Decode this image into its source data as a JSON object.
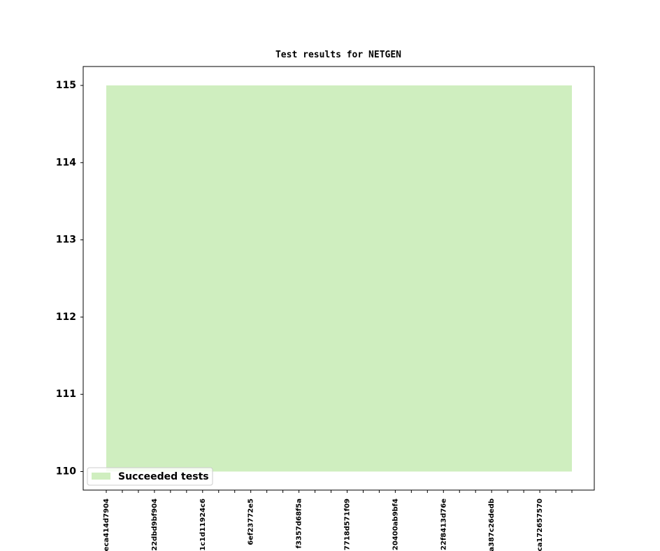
{
  "chart_data": {
    "type": "area",
    "title": "Test results for NETGEN",
    "categories": [
      "eca414d7904",
      null,
      null,
      "22dbd9bf904",
      null,
      null,
      "1c1d11924c6",
      null,
      null,
      "6ef23772e5",
      null,
      null,
      "f3357d68f5a",
      null,
      null,
      "7718d571f09",
      null,
      null,
      "20400ab9bf4",
      null,
      null,
      "22f8413d76e",
      null,
      null,
      "a387c26dedb",
      null,
      null,
      "ca172657570",
      null,
      null
    ],
    "series": [
      {
        "name": "Succeeded tests",
        "color": "#cfeebf",
        "values": [
          115,
          115,
          115,
          115,
          115,
          115,
          115,
          115,
          115,
          115,
          115,
          115,
          115,
          115,
          115,
          115,
          115,
          115,
          115,
          115,
          115,
          115,
          115,
          115,
          115,
          115,
          115,
          115,
          115,
          115
        ]
      }
    ],
    "baseline": 110,
    "ylim": [
      109.76,
      115.245
    ],
    "yticks": [
      110,
      111,
      112,
      113,
      114,
      115
    ],
    "legend": "lower left"
  }
}
